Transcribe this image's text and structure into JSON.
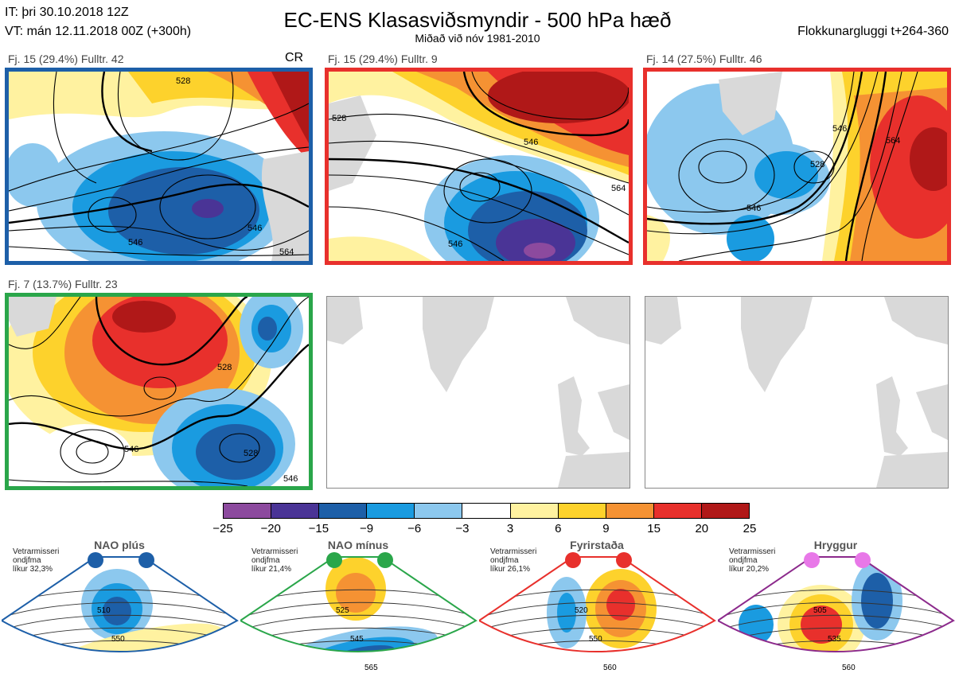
{
  "header": {
    "it": "IT: þri 30.10.2018 12Z",
    "vt": "VT: mán 12.11.2018 00Z  (+300h)",
    "title": "EC-ENS Klasasviðsmyndir - 500 hPa hæð",
    "subtitle": "Miðað við nóv 1981-2010",
    "window": "Flokkunargluggi t+264-360"
  },
  "panels": [
    {
      "label": "Fj. 15 (29.4%)   Fulltr. 42",
      "border": "#1d5fa8",
      "extra": "CR",
      "contours": [
        "546",
        "528",
        "546",
        "564"
      ]
    },
    {
      "label": "Fj. 15 (29.4%)   Fulltr. 9",
      "border": "#e8302c",
      "contours": [
        "528",
        "546",
        "564",
        "546"
      ]
    },
    {
      "label": "Fj. 14 (27.5%)   Fulltr. 46",
      "border": "#e8302c",
      "contours": [
        "546",
        "564",
        "528",
        "546"
      ]
    },
    {
      "label": "Fj. 7 (13.7%)   Fulltr. 23",
      "border": "#2aa64a",
      "contours": [
        "528",
        "546",
        "528",
        "546"
      ]
    }
  ],
  "colorbar": {
    "ticks": [
      "−25",
      "−20",
      "−15",
      "−9",
      "−6",
      "−3",
      "3",
      "6",
      "9",
      "15",
      "20",
      "25"
    ],
    "colors": [
      "#8c4a9e",
      "#4a3496",
      "#1d5fa8",
      "#1a9be0",
      "#8cc8ee",
      "#ffffff",
      "#fff2a0",
      "#fdd22c",
      "#f59233",
      "#e8302c",
      "#b01818"
    ]
  },
  "regimes": [
    {
      "name": "NAO plús",
      "info": "Vetrarmisseri\nondjfma\nlíkur 32,3%",
      "dot": "#1d5fa8",
      "border": "#1d5fa8",
      "contours": [
        "510",
        "550"
      ]
    },
    {
      "name": "NAO mínus",
      "info": "Vetrarmisseri\nondjfma\nlíkur 21,4%",
      "dot": "#2aa64a",
      "border": "#2aa64a",
      "contours": [
        "525",
        "545",
        "565"
      ]
    },
    {
      "name": "Fyrirstaða",
      "info": "Vetrarmisseri\nondjfma\nlíkur 26,1%",
      "dot": "#e8302c",
      "border": "#e8302c",
      "contours": [
        "520",
        "550",
        "560"
      ]
    },
    {
      "name": "Hryggur",
      "info": "Vetrarmisseri\nondjfma\nlíkur 20,2%",
      "dot": "#e878e8",
      "border": "#8c2a8c",
      "contours": [
        "505",
        "535",
        "560"
      ]
    }
  ]
}
